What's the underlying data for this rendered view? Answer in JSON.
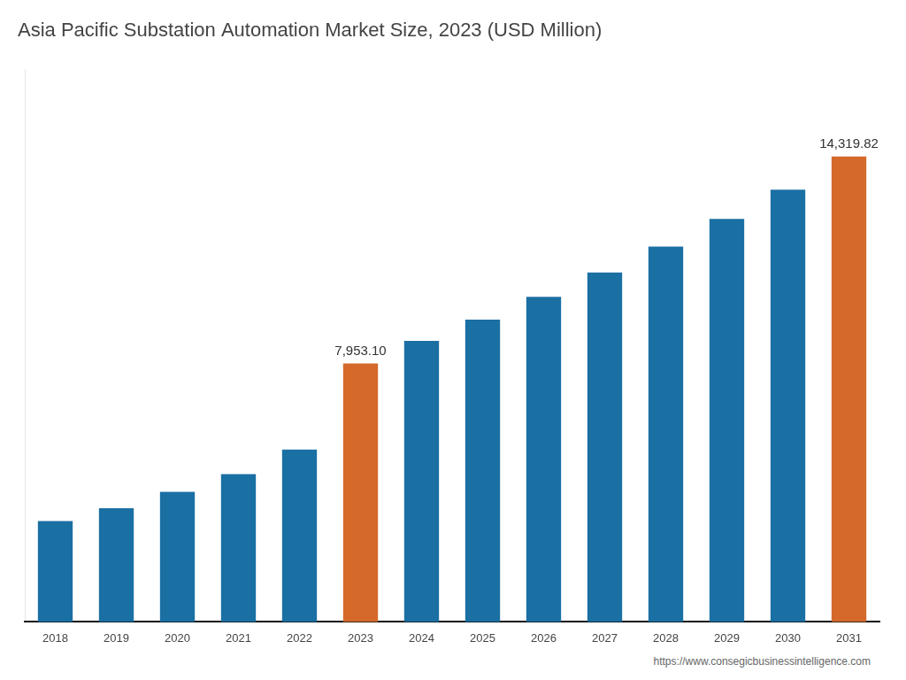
{
  "chart_data": {
    "type": "bar",
    "title": "Asia Pacific Substation Automation Market Size, 2023 (USD Million)",
    "categories": [
      "2018",
      "2019",
      "2020",
      "2021",
      "2022",
      "2023",
      "2024",
      "2025",
      "2026",
      "2027",
      "2028",
      "2029",
      "2030",
      "2031"
    ],
    "values": [
      3100,
      3500,
      4000,
      4550,
      5300,
      7953.1,
      8650,
      9300,
      10000,
      10750,
      11550,
      12400,
      13300,
      14319.82
    ],
    "colors": [
      "#1a6fa3",
      "#1a6fa3",
      "#1a6fa3",
      "#1a6fa3",
      "#1a6fa3",
      "#d4692a",
      "#1a6fa3",
      "#1a6fa3",
      "#1a6fa3",
      "#1a6fa3",
      "#1a6fa3",
      "#1a6fa3",
      "#1a6fa3",
      "#d4692a"
    ],
    "data_labels": true,
    "value_labels": [
      null,
      null,
      null,
      null,
      null,
      "7,953.10",
      null,
      null,
      null,
      null,
      null,
      null,
      null,
      "14,319.82"
    ],
    "ylim": [
      0,
      17000
    ],
    "grid": false,
    "tick_labels": "x",
    "annotations": [
      "https://www.consegicbusinessintelligence.com"
    ]
  }
}
